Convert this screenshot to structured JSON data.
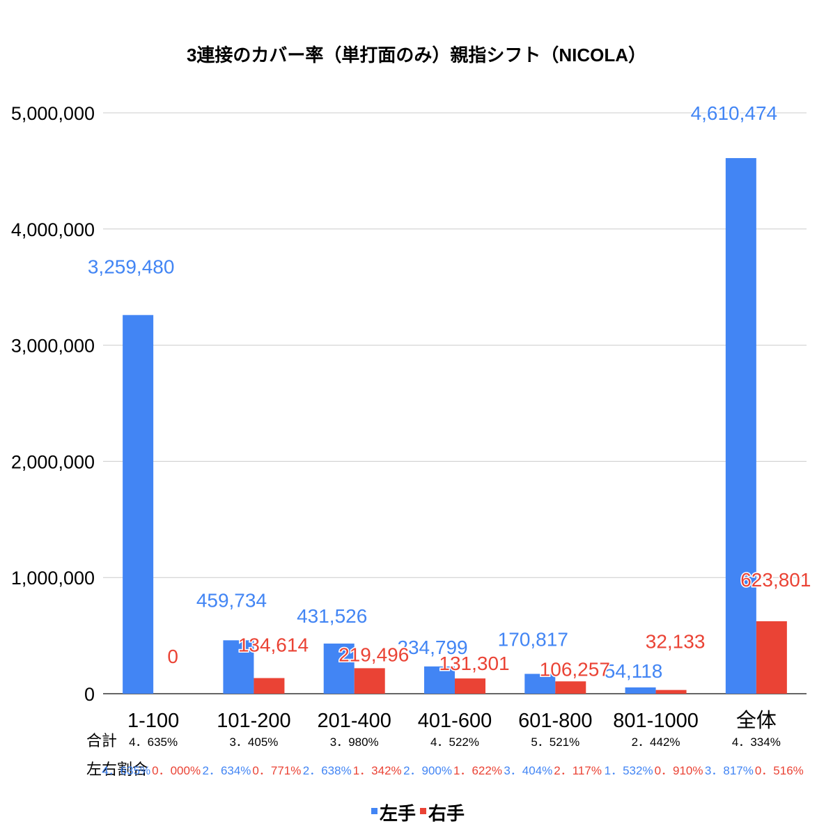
{
  "chart_data": {
    "type": "bar",
    "title": "3連接のカバー率（単打面のみ）親指シフト（NICOLA）",
    "categories": [
      "1-100",
      "101-200",
      "201-400",
      "401-600",
      "601-800",
      "801-1000",
      "全体"
    ],
    "series": [
      {
        "name": "左手",
        "color": "#4285f4",
        "values": [
          3259480,
          459734,
          431526,
          234799,
          170817,
          54118,
          4610474
        ],
        "labels": [
          "3,259,480",
          "459,734",
          "431,526",
          "234,799",
          "170,817",
          "54,118",
          "4,610,474"
        ]
      },
      {
        "name": "右手",
        "color": "#ea4335",
        "values": [
          0,
          134614,
          219496,
          131301,
          106257,
          32133,
          623801
        ],
        "labels": [
          "0",
          "134,614",
          "219,496",
          "131,301",
          "106,257",
          "32,133",
          "623,801"
        ]
      }
    ],
    "ylim": [
      0,
      5000000
    ],
    "yticks": [
      "0",
      "1,000,000",
      "2,000,000",
      "3,000,000",
      "4,000,000",
      "5,000,000"
    ],
    "grid": true,
    "legend": "bottom"
  },
  "table": {
    "total_label": "合計",
    "ratio_label": "左右割合",
    "totals": [
      "4．635%",
      "3．405%",
      "3．980%",
      "4．522%",
      "5．521%",
      "2．442%",
      "4．334%"
    ],
    "left_ratios": [
      "4．635%",
      "2．634%",
      "2．638%",
      "2．900%",
      "3．404%",
      "1．532%",
      "3．817%"
    ],
    "right_ratios": [
      "0．000%",
      "0．771%",
      "1．342%",
      "1．622%",
      "2．117%",
      "0．910%",
      "0．516%"
    ]
  }
}
